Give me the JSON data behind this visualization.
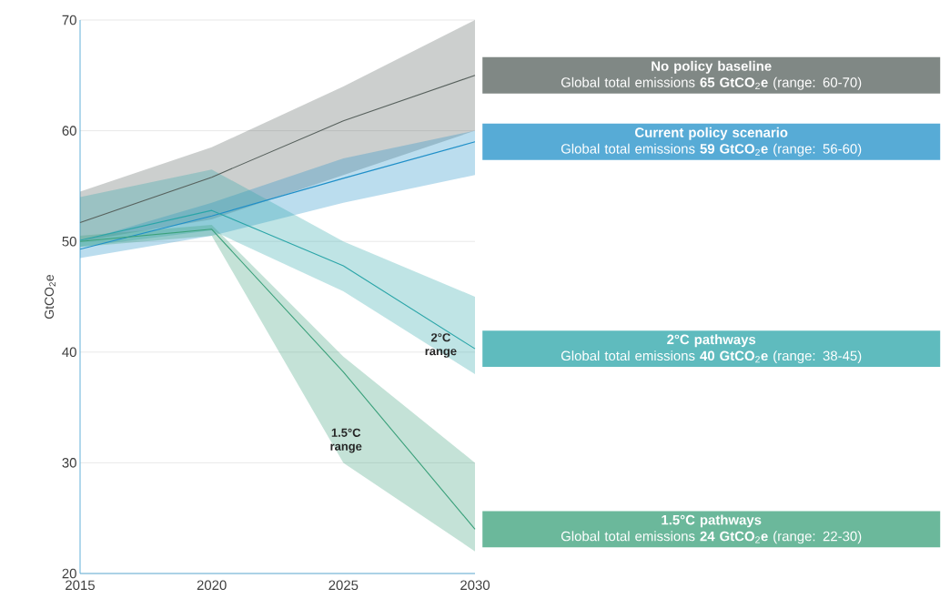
{
  "chart_data": {
    "type": "line",
    "ylabel": "GtCO$_{2}$e",
    "x": [
      2015,
      2020,
      2025,
      2030
    ],
    "xlim": [
      2015,
      2030
    ],
    "xticks": [
      2015,
      2020,
      2025,
      2030
    ],
    "ylim": [
      20,
      70
    ],
    "yticks": [
      20,
      30,
      40,
      50,
      60,
      70
    ],
    "grid": "y",
    "series": [
      {
        "name": "No policy baseline",
        "color": "#56605c",
        "values": [
          51.7,
          55.8,
          60.9,
          65
        ],
        "lower": [
          50,
          52,
          56,
          60
        ],
        "upper": [
          54.5,
          58.5,
          64,
          70
        ]
      },
      {
        "name": "Current policy scenario",
        "color": "#1f8fc8",
        "values": [
          49.3,
          52.3,
          55.7,
          59
        ],
        "lower": [
          48.5,
          50.5,
          53.5,
          56
        ],
        "upper": [
          50,
          53.5,
          57.5,
          60
        ]
      },
      {
        "name": "2°C pathways",
        "color": "#2aa5a8",
        "values": [
          50.1,
          52.8,
          47.8,
          40.3
        ],
        "lower": [
          49.5,
          51,
          45.5,
          38
        ],
        "upper": [
          54,
          56.5,
          50,
          45
        ]
      },
      {
        "name": "1.5°C pathways",
        "color": "#3aa07a",
        "values": [
          50,
          51.1,
          38.2,
          24
        ],
        "lower": [
          49.5,
          50.5,
          30,
          22
        ],
        "upper": [
          50.5,
          51.5,
          39.6,
          30
        ]
      }
    ],
    "annotations": [
      "Global total emissions **65 GtCO**$_{2}$**e** (range: 60-70)",
      "Global total emissions **59 GtCO**$_{2}$**e** (range: 56-60)",
      "Global total emissions **40 GtCO**$_{2}$**e** (range: 38-45)",
      "Global total emissions **24 GtCO**$_{2}$**e** (range: 22-30)",
      "2°C range",
      "1.5°C range"
    ]
  }
}
